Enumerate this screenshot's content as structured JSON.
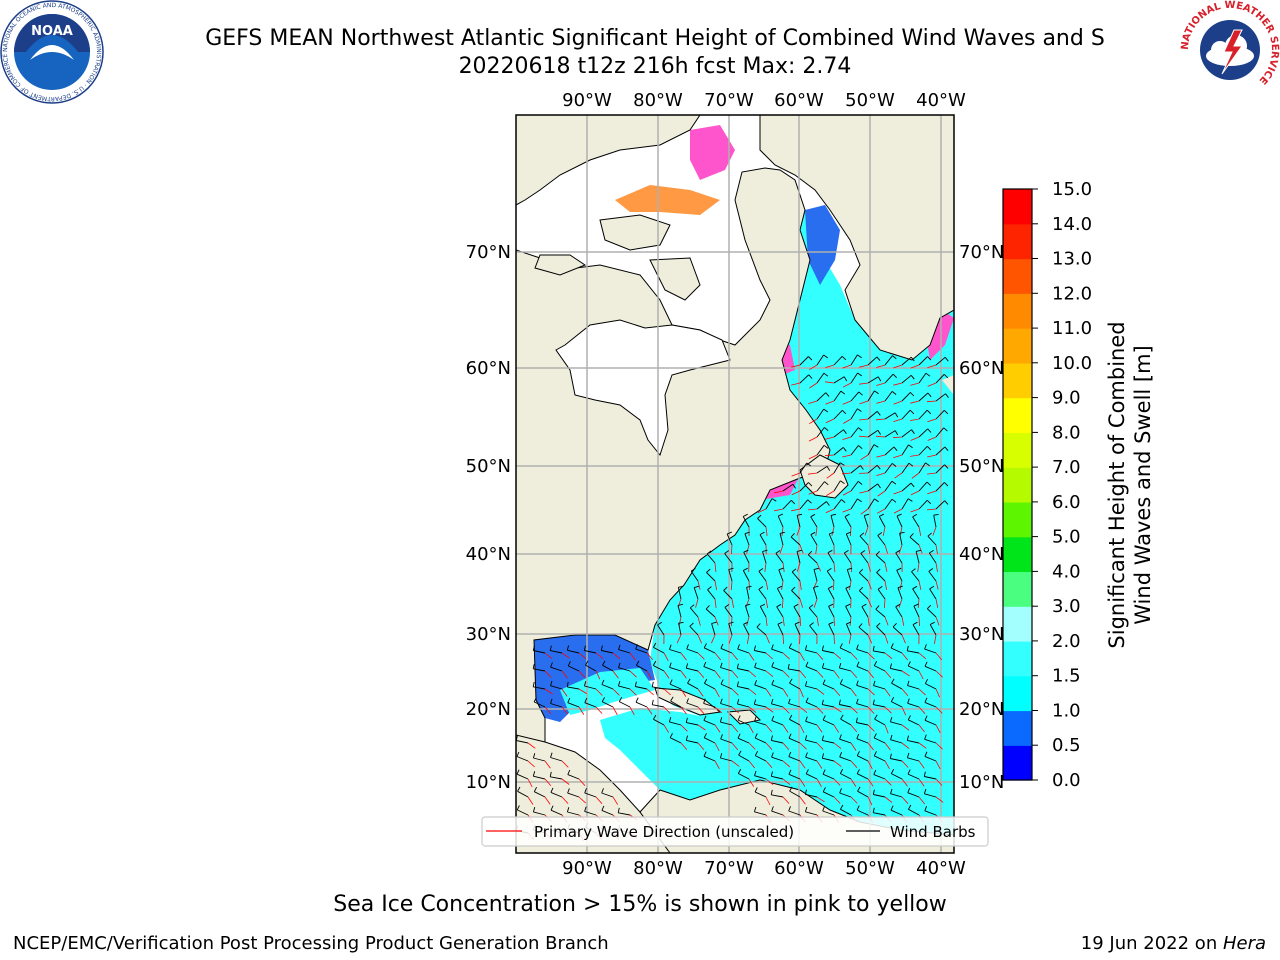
{
  "header": {
    "title_line1": "GEFS MEAN Northwest Atlantic Significant Height of Combined Wind Waves and S",
    "title_line2": "20220618 t12z 216h fcst   Max: 2.74"
  },
  "logos": {
    "noaa": {
      "text": "NOAA",
      "icon": "noaa-seagull-logo",
      "ring_text": "NATIONAL OCEANIC AND ATMOSPHERIC ADMINISTRATION · U.S. DEPARTMENT OF COMMERCE"
    },
    "nws": {
      "icon": "nws-lightning-logo",
      "ring_text": "NATIONAL WEATHER SERVICE"
    }
  },
  "map": {
    "lon_ticks": [
      "90°W",
      "80°W",
      "70°W",
      "60°W",
      "50°W",
      "40°W"
    ],
    "lat_ticks": [
      "70°N",
      "60°N",
      "50°N",
      "40°N",
      "30°N",
      "20°N",
      "10°N"
    ],
    "land_color": "#efeedc",
    "ice_color": "#ff55cc",
    "wave_color": "#33ffff",
    "legend": {
      "wave_direction": "Primary Wave Direction (unscaled)",
      "wind_barbs": "Wind Barbs"
    }
  },
  "colorbar": {
    "label_line1": "Significant Height of Combined",
    "label_line2": "Wind Waves and Swell [m]",
    "ticks": [
      "0.0",
      "0.5",
      "1.0",
      "1.5",
      "2.0",
      "3.0",
      "4.0",
      "5.0",
      "6.0",
      "7.0",
      "8.0",
      "9.0",
      "10.0",
      "11.0",
      "12.0",
      "13.0",
      "14.0",
      "15.0"
    ],
    "colors": [
      "#0000ff",
      "#0a6aff",
      "#00ffff",
      "#33ffff",
      "#a2fffd",
      "#4aff80",
      "#00e51a",
      "#5ef500",
      "#b6fa00",
      "#d8ff00",
      "#ffff00",
      "#ffcd00",
      "#ffa800",
      "#ff8a00",
      "#ff5500",
      "#ff2400",
      "#ff0000"
    ]
  },
  "footer": {
    "ice_note": "Sea Ice Concentration > 15% is shown in pink to yellow",
    "credit": "NCEP/EMC/Verification Post Processing Product Generation Branch",
    "date": "19 Jun 2022 on ",
    "machine": "Hera"
  }
}
